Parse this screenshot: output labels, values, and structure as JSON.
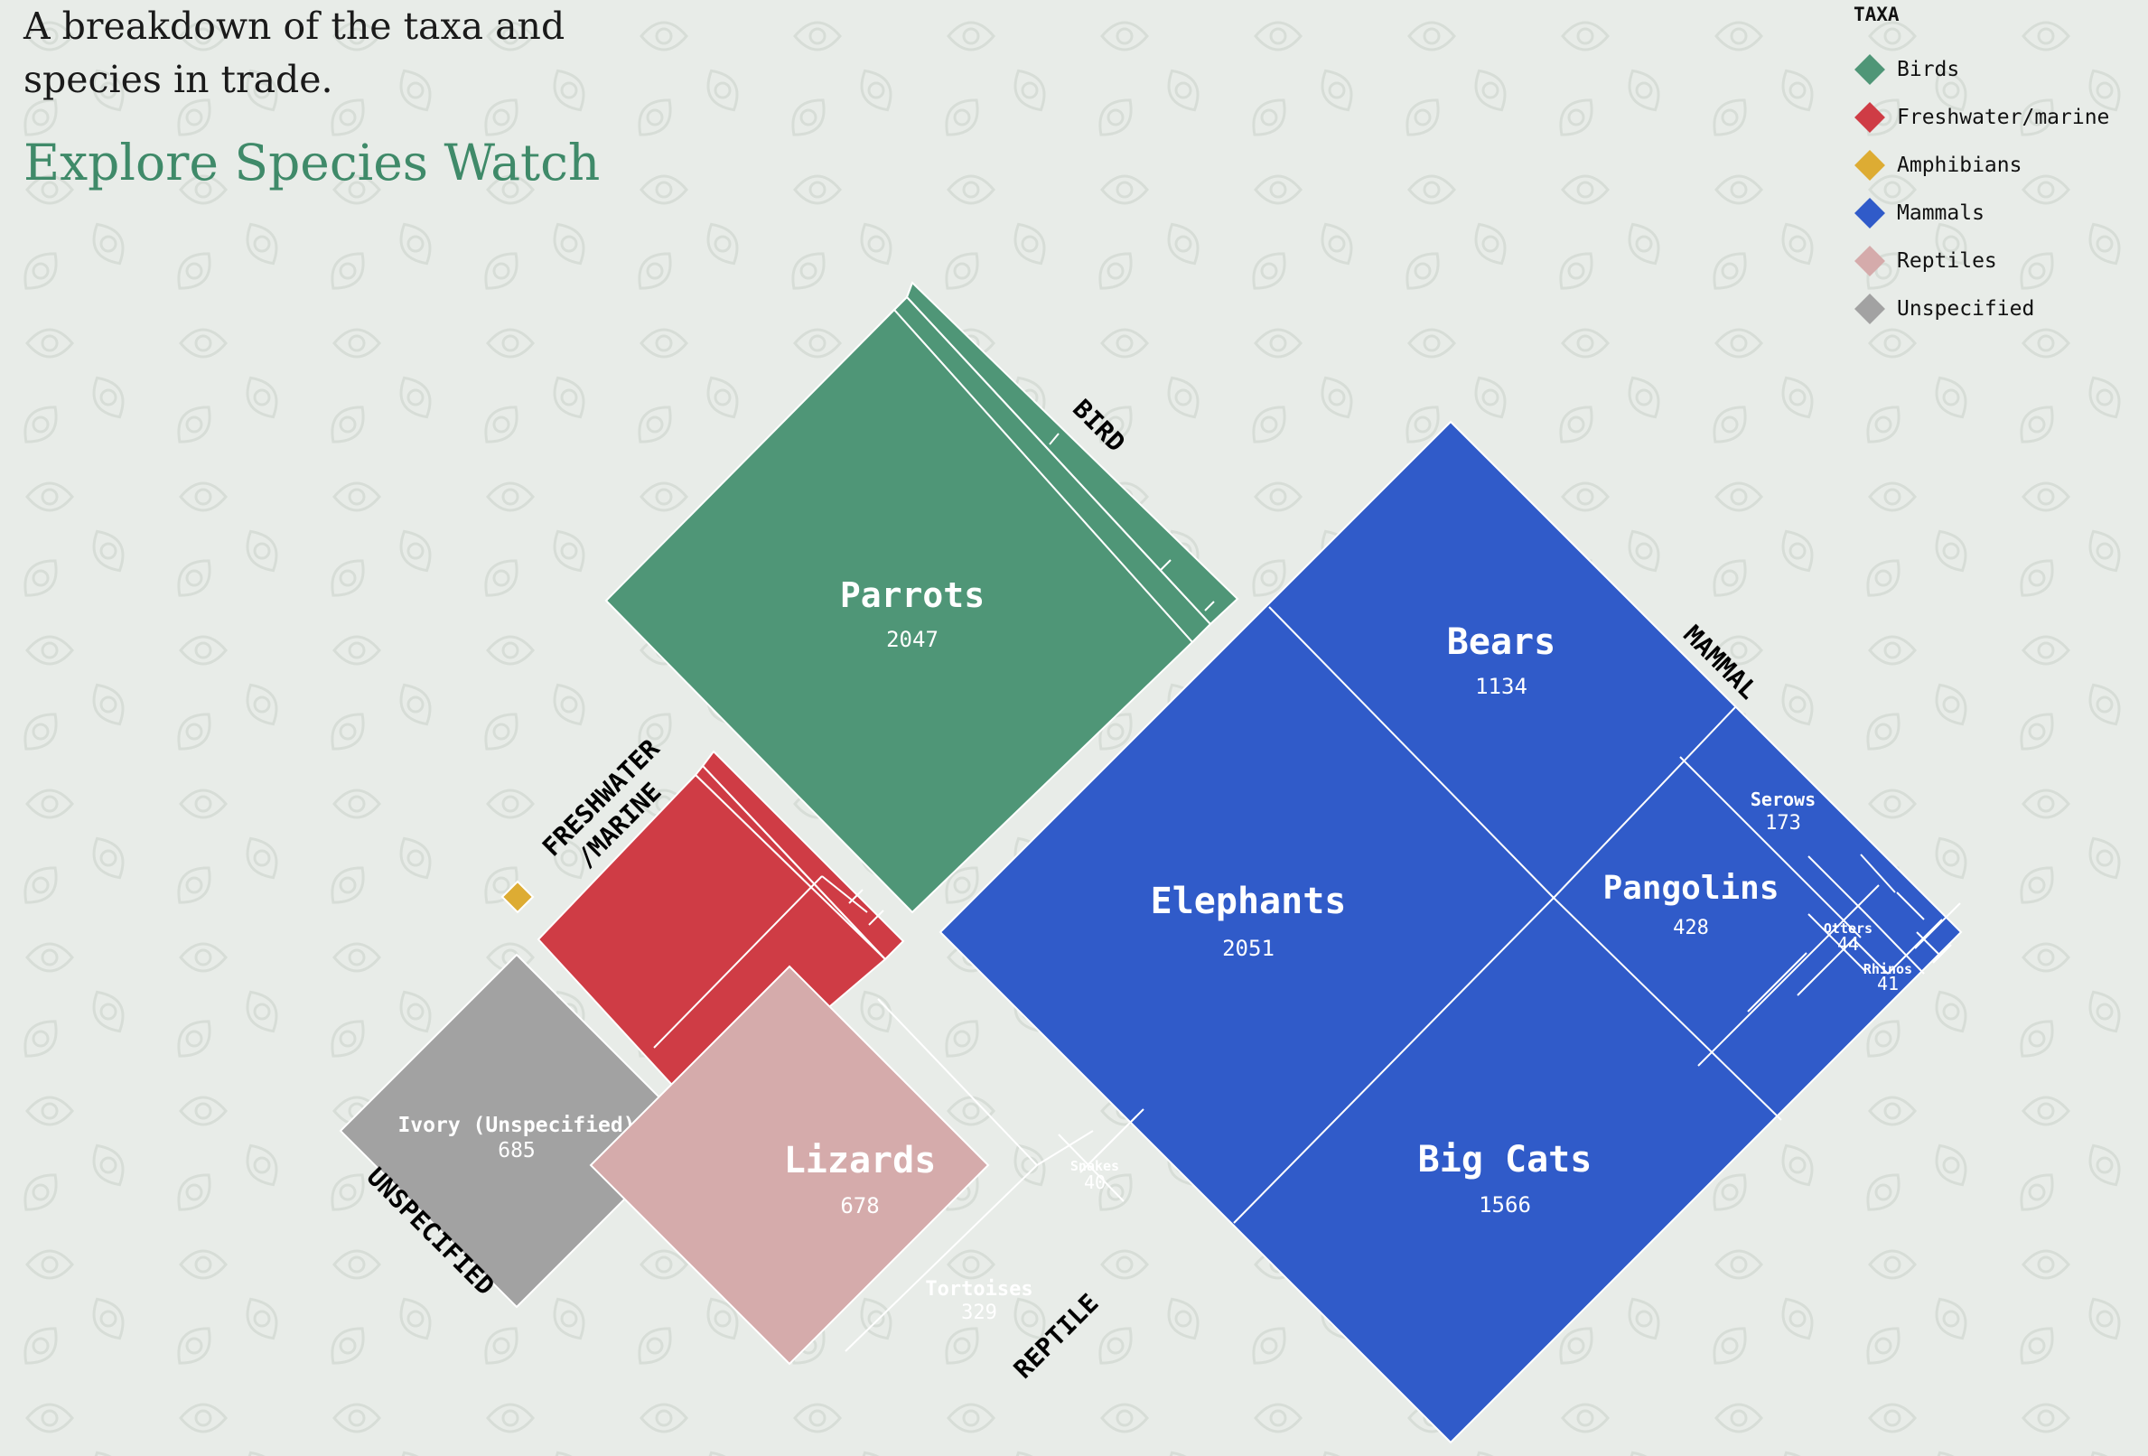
{
  "intro": "A breakdown of the taxa and species in trade.",
  "explore_link": "Explore Species Watch",
  "legend": {
    "title": "TAXA",
    "items": [
      {
        "label": "Birds",
        "color": "#4f9677"
      },
      {
        "label": "Freshwater/marine",
        "color": "#cf3c45"
      },
      {
        "label": "Amphibians",
        "color": "#ddac33"
      },
      {
        "label": "Mammals",
        "color": "#305bc9"
      },
      {
        "label": "Reptiles",
        "color": "#d5abab"
      },
      {
        "label": "Unspecified",
        "color": "#a2a2a2"
      }
    ]
  },
  "chart_data": {
    "type": "treemap",
    "groups": [
      {
        "name": "BIRD",
        "taxon": "Birds",
        "items": [
          {
            "name": "Parrots",
            "value": 2047
          }
        ]
      },
      {
        "name": "MAMMAL",
        "taxon": "Mammals",
        "items": [
          {
            "name": "Elephants",
            "value": 2051
          },
          {
            "name": "Big Cats",
            "value": 1566
          },
          {
            "name": "Bears",
            "value": 1134
          },
          {
            "name": "Pangolins",
            "value": 428
          },
          {
            "name": "Serows",
            "value": 173
          },
          {
            "name": "Otters",
            "value": 44
          },
          {
            "name": "Rhinos",
            "value": 41
          }
        ]
      },
      {
        "name": "FRESHWATER /MARINE",
        "taxon": "Freshwater/marine",
        "items": []
      },
      {
        "name": "REPTILE",
        "taxon": "Reptiles",
        "items": [
          {
            "name": "Lizards",
            "value": 678
          },
          {
            "name": "Tortoises",
            "value": 329
          },
          {
            "name": "Snakes",
            "value": 40
          }
        ]
      },
      {
        "name": "UNSPECIFIED",
        "taxon": "Unspecified",
        "items": [
          {
            "name": "Ivory (Unspecified)",
            "value": 685
          }
        ]
      },
      {
        "name": "",
        "taxon": "Amphibians",
        "items": []
      }
    ]
  }
}
